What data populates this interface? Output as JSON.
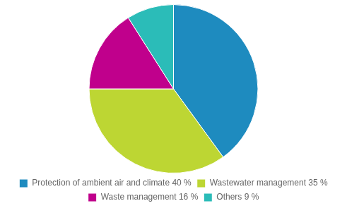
{
  "chart_data": {
    "type": "pie",
    "categories": [
      "Protection of ambient air and climate 40 %",
      "Wastewater management 35 %",
      "Waste management 16 %",
      "Others 9 %"
    ],
    "values": [
      40,
      35,
      16,
      9
    ],
    "colors": [
      "#1e8bbf",
      "#bdd633",
      "#c0008c",
      "#2bbcb8"
    ],
    "legend": "bottom"
  }
}
